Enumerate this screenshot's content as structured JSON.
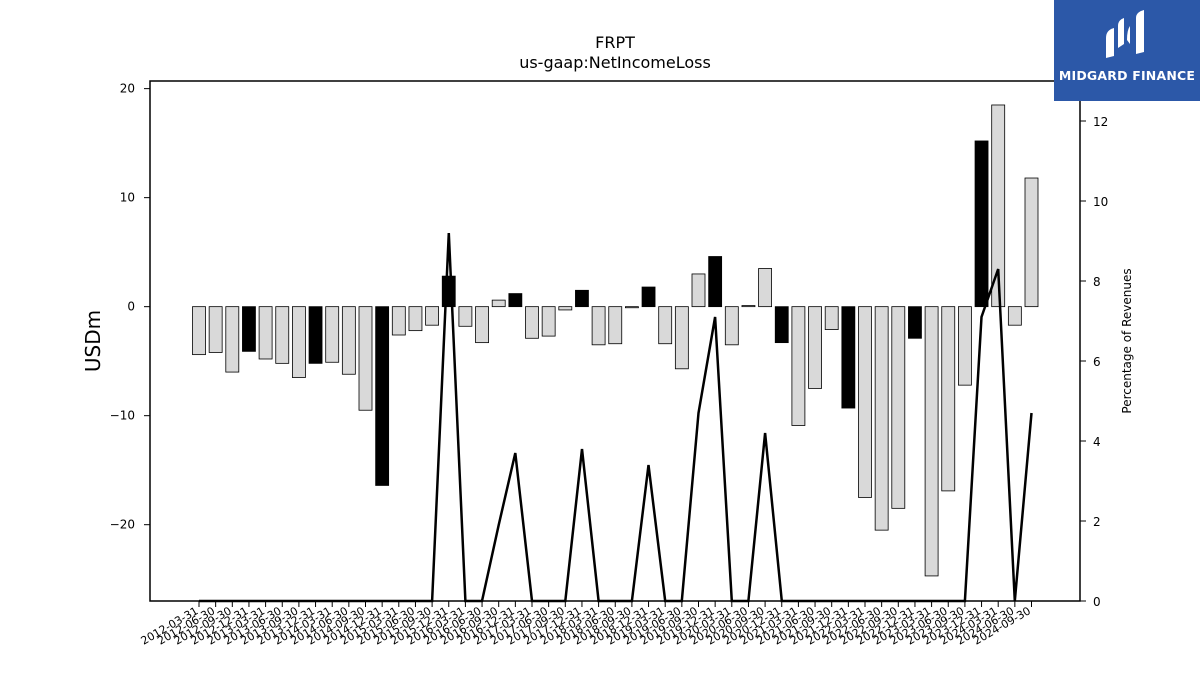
{
  "chart_data": {
    "type": "bar",
    "title": "FRPT",
    "subtitle": "us-gaap:NetIncomeLoss",
    "ylabel": "USDm",
    "y2label": "Percentage of Revenues",
    "ylim": [
      -27,
      20.7
    ],
    "y2lim": [
      0,
      13
    ],
    "yticks": [
      -20,
      -10,
      0,
      10,
      20
    ],
    "y2ticks": [
      0,
      2,
      4,
      6,
      8,
      10,
      12
    ],
    "categories": [
      "2012-03-31",
      "2012-06-30",
      "2012-09-30",
      "2012-12-31",
      "2013-03-31",
      "2013-06-30",
      "2013-09-30",
      "2013-12-31",
      "2014-03-31",
      "2014-06-30",
      "2014-09-30",
      "2014-12-31",
      "2015-03-31",
      "2015-06-30",
      "2015-09-30",
      "2015-12-31",
      "2016-03-31",
      "2016-06-30",
      "2016-09-30",
      "2016-12-31",
      "2017-03-31",
      "2017-06-30",
      "2017-09-30",
      "2017-12-31",
      "2018-03-31",
      "2018-06-30",
      "2018-09-30",
      "2018-12-31",
      "2019-03-31",
      "2019-06-30",
      "2019-09-30",
      "2019-12-31",
      "2020-03-31",
      "2020-06-30",
      "2020-09-30",
      "2020-12-31",
      "2021-03-31",
      "2021-06-30",
      "2021-09-30",
      "2021-12-31",
      "2022-03-31",
      "2022-06-30",
      "2022-09-30",
      "2022-12-31",
      "2023-03-31",
      "2023-06-30",
      "2023-09-30",
      "2023-12-31",
      "2024-03-31",
      "2024-06-30",
      "2024-09-30"
    ],
    "values": [
      -4.4,
      -4.2,
      -6.0,
      -4.1,
      -4.8,
      -5.2,
      -6.5,
      -5.2,
      -5.1,
      -6.2,
      -9.5,
      -16.4,
      -2.6,
      -2.2,
      -1.7,
      2.8,
      -1.8,
      -3.3,
      0.6,
      1.2,
      -2.9,
      -2.7,
      -0.3,
      1.5,
      -3.5,
      -3.4,
      -0.1,
      1.8,
      -3.4,
      -5.7,
      3.0,
      4.6,
      -3.5,
      0.1,
      3.5,
      -3.3,
      -10.9,
      -7.5,
      -2.1,
      -9.3,
      -17.5,
      -20.5,
      -18.5,
      -2.9,
      -24.7,
      -16.9,
      -7.2,
      15.2,
      18.5,
      -1.7,
      11.8
    ],
    "black_bars": [
      3,
      7,
      11,
      15,
      19,
      23,
      27,
      31,
      35,
      39,
      43,
      47
    ],
    "colors": {
      "bar_fill": "#d9d9d9",
      "bar_highlight": "#000000",
      "line": "#000000",
      "logo_bg": "#2c58a8"
    },
    "line_series": {
      "name": "Percentage of Revenues",
      "values": [
        0,
        0,
        0,
        0,
        0,
        0,
        0,
        0,
        0,
        0,
        0,
        0,
        0,
        0,
        0,
        9.2,
        0,
        0,
        1.9,
        3.7,
        0,
        0,
        0,
        3.8,
        0,
        0,
        0,
        3.4,
        0,
        0,
        4.7,
        7.1,
        0,
        0,
        4.2,
        0,
        0,
        0,
        0,
        0,
        0,
        0,
        0,
        0,
        0,
        0,
        0,
        7.1,
        8.3,
        0,
        4.7
      ]
    },
    "grid": false
  },
  "logo": {
    "text": "MIDGARD FINANCE"
  }
}
